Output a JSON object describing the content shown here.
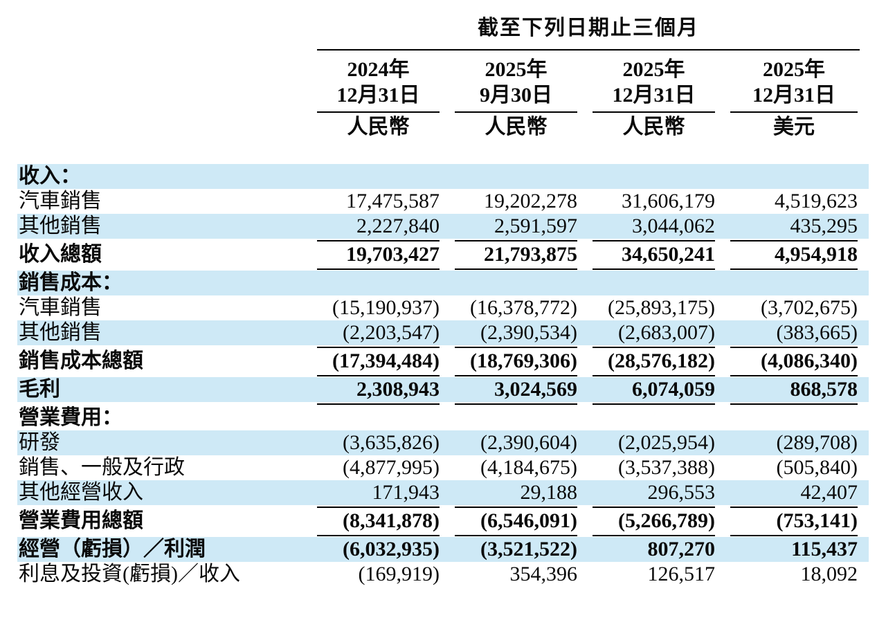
{
  "colors": {
    "band_blue": "#cee9f6",
    "text": "#0a0a0a",
    "rule": "#000000",
    "background": "#ffffff"
  },
  "table": {
    "title": "截至下列日期止三個月",
    "columns": [
      {
        "year": "2024年",
        "date": "12月31日",
        "currency": "人民幣"
      },
      {
        "year": "2025年",
        "date": "9月30日",
        "currency": "人民幣"
      },
      {
        "year": "2025年",
        "date": "12月31日",
        "currency": "人民幣"
      },
      {
        "year": "2025年",
        "date": "12月31日",
        "currency": "美元"
      }
    ],
    "rows": [
      {
        "id": "revenues-header",
        "label": "收入：",
        "values": [
          "",
          "",
          "",
          ""
        ],
        "bold": true,
        "shade": "blue",
        "rule_after": false
      },
      {
        "id": "vehicle-sales",
        "label": "汽車銷售",
        "values": [
          "17,475,587",
          "19,202,278",
          "31,606,179",
          "4,519,623"
        ],
        "bold": false,
        "shade": "white",
        "rule_after": false
      },
      {
        "id": "other-sales",
        "label": "其他銷售",
        "values": [
          "2,227,840",
          "2,591,597",
          "3,044,062",
          "435,295"
        ],
        "bold": false,
        "shade": "blue",
        "rule_after": true
      },
      {
        "id": "total-revenues",
        "label": "收入總額",
        "values": [
          "19,703,427",
          "21,793,875",
          "34,650,241",
          "4,954,918"
        ],
        "bold": true,
        "shade": "white",
        "rule_after": true
      },
      {
        "id": "cost-of-sales-header",
        "label": "銷售成本：",
        "values": [
          "",
          "",
          "",
          ""
        ],
        "bold": true,
        "shade": "blue",
        "rule_after": false
      },
      {
        "id": "cos-vehicle-sales",
        "label": "汽車銷售",
        "values": [
          "(15,190,937)",
          "(16,378,772)",
          "(25,893,175)",
          "(3,702,675)"
        ],
        "bold": false,
        "shade": "white",
        "rule_after": false
      },
      {
        "id": "cos-other-sales",
        "label": "其他銷售",
        "values": [
          "(2,203,547)",
          "(2,390,534)",
          "(2,683,007)",
          "(383,665)"
        ],
        "bold": false,
        "shade": "blue",
        "rule_after": true
      },
      {
        "id": "total-cost-of-sales",
        "label": "銷售成本總額",
        "values": [
          "(17,394,484)",
          "(18,769,306)",
          "(28,576,182)",
          "(4,086,340)"
        ],
        "bold": true,
        "shade": "white",
        "rule_after": true
      },
      {
        "id": "gross-profit",
        "label": "毛利",
        "values": [
          "2,308,943",
          "3,024,569",
          "6,074,059",
          "868,578"
        ],
        "bold": true,
        "shade": "blue",
        "rule_after": true
      },
      {
        "id": "operating-expenses-header",
        "label": "營業費用：",
        "values": [
          "",
          "",
          "",
          ""
        ],
        "bold": true,
        "shade": "white",
        "rule_after": false
      },
      {
        "id": "research-development",
        "label": "研發",
        "values": [
          "(3,635,826)",
          "(2,390,604)",
          "(2,025,954)",
          "(289,708)"
        ],
        "bold": false,
        "shade": "blue",
        "rule_after": false
      },
      {
        "id": "selling-general-admin",
        "label": "銷售、一般及行政",
        "values": [
          "(4,877,995)",
          "(4,184,675)",
          "(3,537,388)",
          "(505,840)"
        ],
        "bold": false,
        "shade": "white",
        "rule_after": false
      },
      {
        "id": "other-operating-income",
        "label": "其他經營收入",
        "values": [
          "171,943",
          "29,188",
          "296,553",
          "42,407"
        ],
        "bold": false,
        "shade": "blue",
        "rule_after": true
      },
      {
        "id": "total-operating-expenses",
        "label": "營業費用總額",
        "values": [
          "(8,341,878)",
          "(6,546,091)",
          "(5,266,789)",
          "(753,141)"
        ],
        "bold": true,
        "shade": "white",
        "rule_after": true
      },
      {
        "id": "operating-loss-profit",
        "label": "經營（虧損）／利潤",
        "values": [
          "(6,032,935)",
          "(3,521,522)",
          "807,270",
          "115,437"
        ],
        "bold": true,
        "shade": "blue",
        "rule_after": false
      },
      {
        "id": "interest-investment",
        "label": "利息及投資(虧損)／收入",
        "values": [
          "(169,919)",
          "354,396",
          "126,517",
          "18,092"
        ],
        "bold": false,
        "shade": "white",
        "rule_after": false
      }
    ]
  }
}
